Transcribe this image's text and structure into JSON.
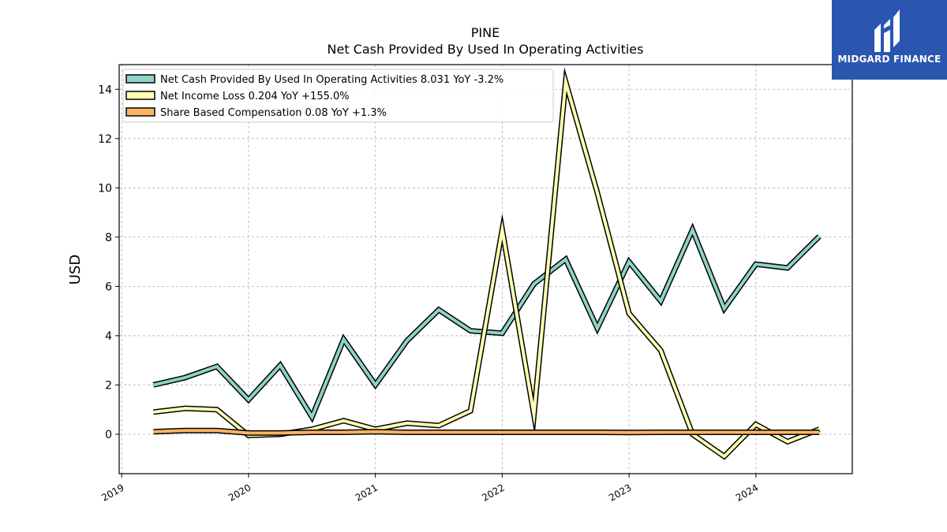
{
  "chart_data": {
    "type": "line",
    "title": "PINE",
    "subtitle": "Net Cash Provided By Used In Operating Activities",
    "ylabel": "USD",
    "xlabel": "",
    "ylim": [
      -1.6,
      15
    ],
    "yticks": [
      0,
      2,
      4,
      6,
      8,
      10,
      12,
      14
    ],
    "xlim": [
      2018.98,
      2024.76
    ],
    "xticks": [
      {
        "value": 2019,
        "label": "2019"
      },
      {
        "value": 2020,
        "label": "2020"
      },
      {
        "value": 2021,
        "label": "2021"
      },
      {
        "value": 2022,
        "label": "2022"
      },
      {
        "value": 2023,
        "label": "2023"
      },
      {
        "value": 2024,
        "label": "2024"
      }
    ],
    "grid": true,
    "legend_position": "top-left",
    "x": [
      2019.25,
      2019.5,
      2019.75,
      2020.0,
      2020.25,
      2020.5,
      2020.75,
      2021.0,
      2021.25,
      2021.5,
      2021.75,
      2022.0,
      2022.25,
      2022.5,
      2022.75,
      2023.0,
      2023.25,
      2023.5,
      2023.75,
      2024.0,
      2024.25,
      2024.5
    ],
    "series": [
      {
        "name": "Net Cash Provided By Used In Operating Activities",
        "legend_label": "Net Cash Provided By Used In Operating Activities  8.031 YoY -3.2%",
        "color": "#8dd3c7",
        "values": [
          2.0,
          2.3,
          2.75,
          1.4,
          2.8,
          0.7,
          3.85,
          2.0,
          3.8,
          5.05,
          4.2,
          4.1,
          6.1,
          7.1,
          4.3,
          7.0,
          5.4,
          8.3,
          5.1,
          6.9,
          6.75,
          8.031
        ]
      },
      {
        "name": "Net Income Loss",
        "legend_label": "Net Income Loss  0.204 YoY +155.0%",
        "color": "#ffffb3",
        "values": [
          0.9,
          1.05,
          1.0,
          -0.05,
          0.0,
          0.2,
          0.55,
          0.2,
          0.45,
          0.35,
          0.95,
          8.3,
          0.8,
          14.3,
          9.8,
          4.9,
          3.4,
          0.0,
          -0.9,
          0.4,
          -0.3,
          0.204
        ]
      },
      {
        "name": "Share Based Compensation",
        "legend_label": "Share Based Compensation  0.08 YoY +1.3%",
        "color": "#fdb462",
        "values": [
          0.1,
          0.15,
          0.15,
          0.05,
          0.05,
          0.08,
          0.08,
          0.1,
          0.08,
          0.08,
          0.08,
          0.08,
          0.08,
          0.08,
          0.08,
          0.07,
          0.08,
          0.08,
          0.08,
          0.08,
          0.08,
          0.08
        ]
      }
    ]
  },
  "logo": {
    "text": "MIDGARD FINANCE",
    "bg_color": "#2a56b0"
  }
}
